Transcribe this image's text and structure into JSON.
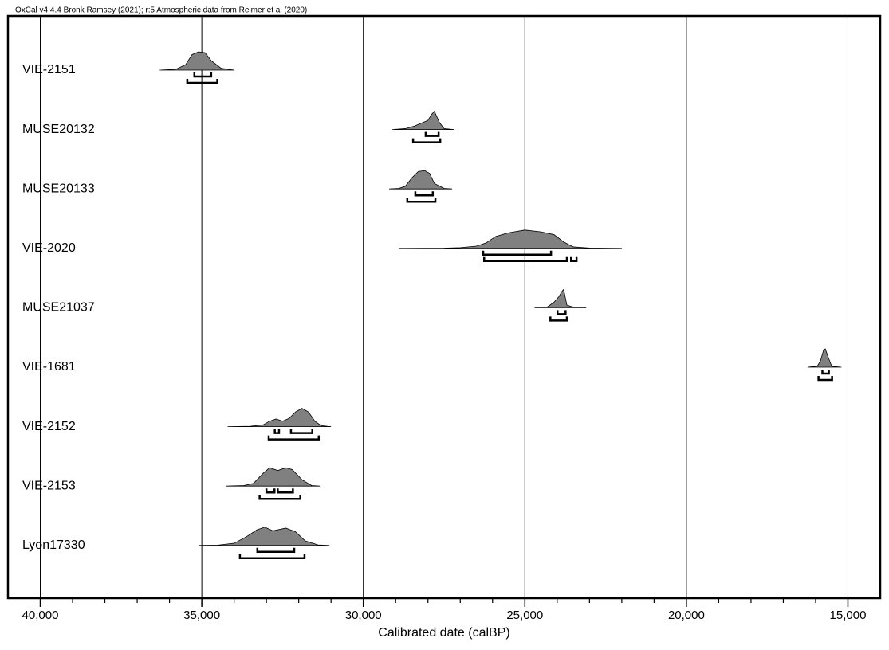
{
  "chart_data": {
    "type": "multiplot",
    "title": "OxCal v4.4.4 Bronk Ramsey (2021); r:5 Atmospheric data from Reimer et al (2020)",
    "xlabel": "Calibrated date (calBP)",
    "xlim": [
      41000,
      14000
    ],
    "xticks": [
      {
        "value": 40000,
        "label": "40,000"
      },
      {
        "value": 35000,
        "label": "35,000"
      },
      {
        "value": 30000,
        "label": "30,000"
      },
      {
        "value": 25000,
        "label": "25,000"
      },
      {
        "value": 20000,
        "label": "20,000"
      },
      {
        "value": 15000,
        "label": "15,000"
      }
    ],
    "xminorticks": [
      39000,
      38000,
      37000,
      36000,
      34000,
      33000,
      32000,
      31000,
      29000,
      28000,
      27000,
      26000,
      24000,
      23000,
      22000,
      21000,
      19000,
      18000,
      17000,
      16000
    ],
    "grid": true,
    "color": "#808080",
    "series": [
      {
        "name": "VIE-2151",
        "x": [
          36300,
          35800,
          35500,
          35300,
          35100,
          34900,
          34700,
          34400,
          34000
        ],
        "density": [
          0,
          0.05,
          0.3,
          0.85,
          1,
          0.95,
          0.5,
          0.1,
          0
        ],
        "range_68": [
          [
            35230,
            34710
          ]
        ],
        "range_95": [
          [
            35450,
            34520
          ]
        ]
      },
      {
        "name": "MUSE20132",
        "x": [
          29100,
          28700,
          28400,
          28200,
          28000,
          27900,
          27800,
          27650,
          27500,
          27200
        ],
        "density": [
          0,
          0.05,
          0.2,
          0.35,
          0.5,
          0.8,
          1,
          0.4,
          0.05,
          0
        ],
        "range_68": [
          [
            28070,
            27670
          ]
        ],
        "range_95": [
          [
            28460,
            27620
          ]
        ]
      },
      {
        "name": "MUSE20133",
        "x": [
          29200,
          28900,
          28700,
          28500,
          28300,
          28100,
          27950,
          27800,
          27500,
          27250
        ],
        "density": [
          0,
          0.03,
          0.15,
          0.6,
          0.95,
          1,
          0.85,
          0.3,
          0.03,
          0
        ],
        "range_68": [
          [
            28390,
            27850
          ]
        ],
        "range_95": [
          [
            28640,
            27770
          ]
        ]
      },
      {
        "name": "VIE-2020",
        "x": [
          28900,
          27500,
          27000,
          26500,
          26200,
          25900,
          25500,
          25000,
          24500,
          24100,
          23800,
          23500,
          23000,
          22000
        ],
        "density": [
          0,
          0.01,
          0.04,
          0.12,
          0.3,
          0.65,
          0.85,
          1,
          0.9,
          0.75,
          0.35,
          0.08,
          0.02,
          0
        ],
        "range_68": [
          [
            26290,
            24190
          ]
        ],
        "range_95": [
          [
            26260,
            23700
          ],
          [
            23570,
            23400
          ]
        ]
      },
      {
        "name": "MUSE21037",
        "x": [
          24700,
          24300,
          24100,
          23950,
          23850,
          23800,
          23700,
          23550,
          23400,
          23100
        ],
        "density": [
          0,
          0.05,
          0.3,
          0.6,
          0.9,
          1,
          0.15,
          0.06,
          0.02,
          0
        ],
        "range_68": [
          [
            23990,
            23740
          ]
        ],
        "range_95": [
          [
            24210,
            23700
          ]
        ]
      },
      {
        "name": "VIE-1681",
        "x": [
          16250,
          15950,
          15850,
          15750,
          15700,
          15600,
          15500,
          15200
        ],
        "density": [
          0,
          0.05,
          0.35,
          0.95,
          1,
          0.5,
          0.05,
          0
        ],
        "range_68": [
          [
            15790,
            15590
          ]
        ],
        "range_95": [
          [
            15910,
            15490
          ]
        ]
      },
      {
        "name": "VIE-2152",
        "x": [
          34200,
          33500,
          33100,
          32900,
          32700,
          32500,
          32300,
          32100,
          31900,
          31700,
          31500,
          31300,
          31000
        ],
        "density": [
          0,
          0.02,
          0.1,
          0.3,
          0.42,
          0.3,
          0.45,
          0.8,
          1,
          0.8,
          0.3,
          0.05,
          0
        ],
        "range_68": [
          [
            32740,
            32610
          ],
          [
            32240,
            31580
          ]
        ],
        "range_95": [
          [
            32930,
            31380
          ]
        ]
      },
      {
        "name": "VIE-2153",
        "x": [
          34250,
          33700,
          33400,
          33100,
          32900,
          32650,
          32400,
          32200,
          31900,
          31600,
          31350
        ],
        "density": [
          0,
          0.03,
          0.15,
          0.7,
          1,
          0.85,
          1,
          0.9,
          0.35,
          0.03,
          0
        ],
        "range_68": [
          [
            33000,
            32750
          ],
          [
            32650,
            32180
          ]
        ],
        "range_95": [
          [
            33210,
            31950
          ]
        ]
      },
      {
        "name": "Lyon17330",
        "x": [
          35100,
          34500,
          34000,
          33600,
          33300,
          33050,
          32800,
          32400,
          32100,
          31800,
          31400,
          31050
        ],
        "density": [
          0,
          0.02,
          0.12,
          0.5,
          0.85,
          1,
          0.8,
          0.95,
          0.75,
          0.25,
          0.03,
          0
        ],
        "range_68": [
          [
            33280,
            32140
          ]
        ],
        "range_95": [
          [
            33820,
            31820
          ]
        ]
      }
    ]
  }
}
